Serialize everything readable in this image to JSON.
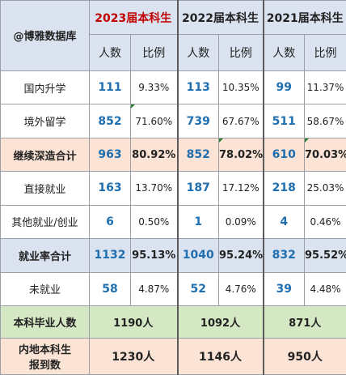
{
  "corner_label": "@博雅数据库",
  "years": [
    "2023届本科生",
    "2022届本科生",
    "2021届本科生"
  ],
  "sub_headers": {
    "count": "人数",
    "ratio": "比例"
  },
  "rows": [
    {
      "label": "国内升学",
      "cells": [
        [
          "111",
          "9.33%"
        ],
        [
          "113",
          "10.35%"
        ],
        [
          "99",
          "11.37%"
        ]
      ]
    },
    {
      "label": "境外留学",
      "cells": [
        [
          "852",
          "71.60%"
        ],
        [
          "739",
          "67.67%"
        ],
        [
          "511",
          "58.67%"
        ]
      ]
    },
    {
      "label": "继续深造合计",
      "cells": [
        [
          "963",
          "80.92%"
        ],
        [
          "852",
          "78.02%"
        ],
        [
          "610",
          "70.03%"
        ]
      ]
    },
    {
      "label": "直接就业",
      "cells": [
        [
          "163",
          "13.70%"
        ],
        [
          "187",
          "17.12%"
        ],
        [
          "218",
          "25.03%"
        ]
      ]
    },
    {
      "label": "其他就业/创业",
      "cells": [
        [
          "6",
          "0.50%"
        ],
        [
          "1",
          "0.09%"
        ],
        [
          "4",
          "0.46%"
        ]
      ]
    },
    {
      "label": "就业率合计",
      "cells": [
        [
          "1132",
          "95.13%"
        ],
        [
          "1040",
          "95.24%"
        ],
        [
          "832",
          "95.52%"
        ]
      ]
    },
    {
      "label": "未就业",
      "cells": [
        [
          "58",
          "4.87%"
        ],
        [
          "52",
          "4.76%"
        ],
        [
          "39",
          "4.48%"
        ]
      ]
    }
  ],
  "graduates": {
    "label": "本科毕业人数",
    "values": [
      "1190人",
      "1092人",
      "871人"
    ]
  },
  "enrollment": {
    "label_line1": "内地本科生",
    "label_line2": "报到数",
    "values": [
      "1230人",
      "1146人",
      "950人"
    ]
  }
}
